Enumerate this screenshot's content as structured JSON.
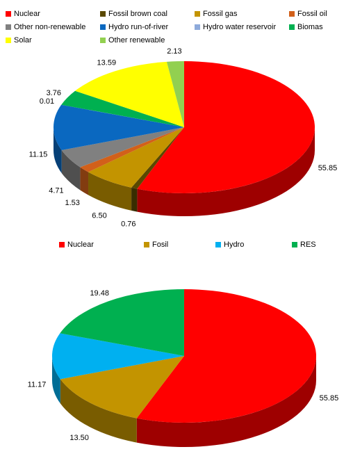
{
  "chart_data": [
    {
      "type": "pie",
      "categories": [
        "Nuclear",
        "Fossil brown coal",
        "Fossil gas",
        "Fossil oil",
        "Other non-renewable",
        "Hydro run-of-river",
        "Hydro water reservoir",
        "Biomas",
        "Solar",
        "Other renewable"
      ],
      "values": [
        55.85,
        0.76,
        6.5,
        1.53,
        4.71,
        11.15,
        0.01,
        3.76,
        13.59,
        2.13
      ],
      "value_labels": [
        "55.85",
        "0.76",
        "6.50",
        "1.53",
        "4.71",
        "11.15",
        "0.01",
        "3.76",
        "13.59",
        "2.13"
      ],
      "colors": [
        "#ff0000",
        "#5a4800",
        "#c39400",
        "#d2601a",
        "#808080",
        "#0a68c0",
        "#8eaadb",
        "#00b050",
        "#ffff00",
        "#92d050"
      ]
    },
    {
      "type": "pie",
      "categories": [
        "Nuclear",
        "Fosil",
        "Hydro",
        "RES"
      ],
      "values": [
        55.85,
        13.5,
        11.17,
        19.48
      ],
      "value_labels": [
        "55.85",
        "13.50",
        "11.17",
        "19.48"
      ],
      "colors": [
        "#ff0000",
        "#c39400",
        "#00b0f0",
        "#00b050"
      ]
    }
  ]
}
